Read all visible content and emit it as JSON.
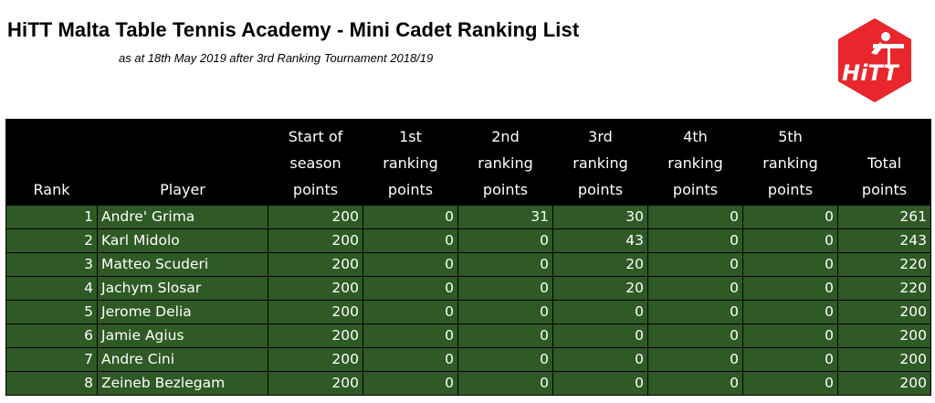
{
  "header": {
    "title": "HiTT Malta Table Tennis Academy - Mini Cadet Ranking List",
    "subtitle": "as at 18th May 2019  after 3rd Ranking Tournament 2018/19",
    "logo_text": "HiTT"
  },
  "colors": {
    "header_bg": "#000000",
    "row_bg": "#2f5a25",
    "logo_red": "#e8262b"
  },
  "table": {
    "columns": [
      [
        "Rank"
      ],
      [
        "Player"
      ],
      [
        "Start of",
        "season",
        "points"
      ],
      [
        "1st",
        "ranking",
        "points"
      ],
      [
        "2nd",
        "ranking",
        "points"
      ],
      [
        "3rd",
        "ranking",
        "points"
      ],
      [
        "4th",
        "ranking",
        "points"
      ],
      [
        "5th",
        "ranking",
        "points"
      ],
      [
        "Total",
        "points"
      ]
    ],
    "rows": [
      [
        "1",
        "Andre' Grima",
        "200",
        "0",
        "31",
        "30",
        "0",
        "0",
        "261"
      ],
      [
        "2",
        "Karl Midolo",
        "200",
        "0",
        "0",
        "43",
        "0",
        "0",
        "243"
      ],
      [
        "3",
        "Matteo Scuderi",
        "200",
        "0",
        "0",
        "20",
        "0",
        "0",
        "220"
      ],
      [
        "4",
        "Jachym Slosar",
        "200",
        "0",
        "0",
        "20",
        "0",
        "0",
        "220"
      ],
      [
        "5",
        "Jerome Delia",
        "200",
        "0",
        "0",
        "0",
        "0",
        "0",
        "200"
      ],
      [
        "6",
        "Jamie Agius",
        "200",
        "0",
        "0",
        "0",
        "0",
        "0",
        "200"
      ],
      [
        "7",
        "Andre Cini",
        "200",
        "0",
        "0",
        "0",
        "0",
        "0",
        "200"
      ],
      [
        "8",
        "Zeineb Bezlegam",
        "200",
        "0",
        "0",
        "0",
        "0",
        "0",
        "200"
      ]
    ]
  }
}
